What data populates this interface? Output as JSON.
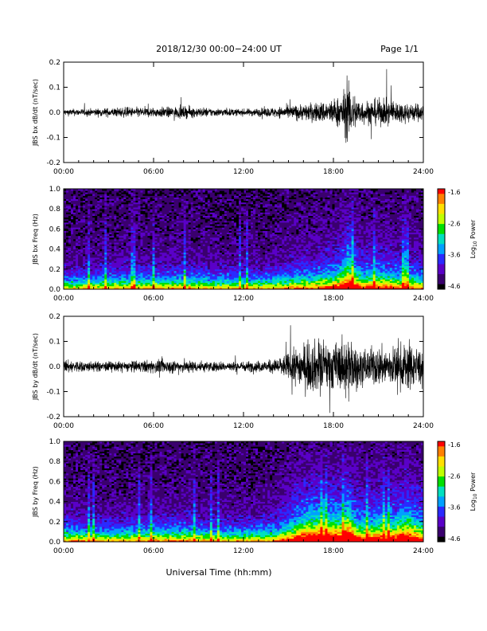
{
  "header": {
    "title": "2018/12/30  00:00−24:00 UT",
    "page": "Page 1/1"
  },
  "footer": {
    "xlabel": "Universal Time (hh:mm)"
  },
  "colors": {
    "background": "#ffffff",
    "trace": "#000000",
    "colormap": [
      "#000000",
      "#3a006e",
      "#5a00c8",
      "#2a2aff",
      "#00a0ff",
      "#00e0c0",
      "#00e000",
      "#c0ff00",
      "#ffe000",
      "#ff8000",
      "#ff0000"
    ]
  },
  "chart_data": [
    {
      "type": "line",
      "ylabel": "JBS bx dB/dt (nT/sec)",
      "xlim": [
        "00:00",
        "24:00"
      ],
      "xticks": [
        "00:00",
        "06:00",
        "12:00",
        "18:00",
        "24:00"
      ],
      "ylim": [
        -0.2,
        0.2
      ],
      "yticks": [
        "0.2",
        "0.1",
        "0.0",
        "-0.1",
        "-0.2"
      ],
      "envelope": {
        "hours": [
          0,
          2,
          4,
          6,
          8,
          10,
          12,
          14,
          15,
          16,
          17,
          18,
          18.5,
          19,
          19.5,
          20,
          21,
          22,
          23,
          24
        ],
        "amplitude": [
          0.02,
          0.022,
          0.03,
          0.03,
          0.035,
          0.025,
          0.02,
          0.03,
          0.04,
          0.05,
          0.06,
          0.08,
          0.1,
          0.18,
          0.1,
          0.07,
          0.08,
          0.07,
          0.06,
          0.05
        ]
      }
    },
    {
      "type": "heatmap",
      "ylabel": "JBS bx Freq (Hz)",
      "xlim": [
        "00:00",
        "24:00"
      ],
      "xticks": [
        "00:00",
        "06:00",
        "12:00",
        "18:00",
        "24:00"
      ],
      "ylim": [
        0.0,
        1.0
      ],
      "yticks": [
        "1.0",
        "0.8",
        "0.6",
        "0.4",
        "0.2",
        "0.0"
      ],
      "colorbar": {
        "label": "Log",
        "label_sub": "10",
        "label_rest": " Power",
        "range": [
          -4.6,
          -1.6
        ],
        "ticks": [
          "-1.6",
          "-2.6",
          "-3.6",
          "-4.6"
        ]
      }
    },
    {
      "type": "line",
      "ylabel": "JBS by dB/dt (nT/sec)",
      "xlim": [
        "00:00",
        "24:00"
      ],
      "xticks": [
        "00:00",
        "06:00",
        "12:00",
        "18:00",
        "24:00"
      ],
      "ylim": [
        -0.2,
        0.2
      ],
      "yticks": [
        "0.2",
        "0.1",
        "0.0",
        "-0.1",
        "-0.2"
      ],
      "envelope": {
        "hours": [
          0,
          2,
          4,
          6,
          8,
          10,
          12,
          14,
          15,
          16,
          17,
          18,
          18.5,
          19,
          19.5,
          20,
          21,
          22,
          23,
          24
        ],
        "amplitude": [
          0.04,
          0.03,
          0.03,
          0.04,
          0.04,
          0.03,
          0.03,
          0.04,
          0.08,
          0.14,
          0.16,
          0.15,
          0.14,
          0.2,
          0.12,
          0.1,
          0.12,
          0.12,
          0.15,
          0.1
        ]
      }
    },
    {
      "type": "heatmap",
      "ylabel": "JBS by Freq (Hz)",
      "xlim": [
        "00:00",
        "24:00"
      ],
      "xticks": [
        "00:00",
        "06:00",
        "12:00",
        "18:00",
        "24:00"
      ],
      "ylim": [
        0.0,
        1.0
      ],
      "yticks": [
        "1.0",
        "0.8",
        "0.6",
        "0.4",
        "0.2",
        "0.0"
      ],
      "colorbar": {
        "label": "Log",
        "label_sub": "10",
        "label_rest": " Power",
        "range": [
          -4.6,
          -1.6
        ],
        "ticks": [
          "-1.6",
          "-2.6",
          "-3.6",
          "-4.6"
        ]
      }
    }
  ]
}
